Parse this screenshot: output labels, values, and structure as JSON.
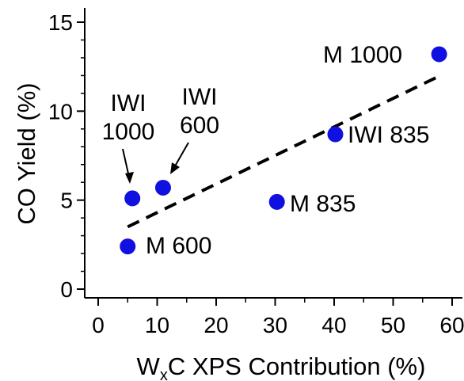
{
  "chart_data": {
    "type": "scatter",
    "title": "",
    "xlabel": "W",
    "xlabel_sub": "x",
    "xlabel_rest": "C XPS Contribution (%)",
    "ylabel": "CO Yield (%)",
    "xlim": [
      -1,
      61
    ],
    "ylim": [
      -0.5,
      15.5
    ],
    "x_ticks": [
      0,
      10,
      20,
      30,
      40,
      50,
      60
    ],
    "y_ticks": [
      0,
      5,
      10,
      15
    ],
    "grid": false,
    "marker_color": "#1010e0",
    "trend_line": {
      "style": "dashed",
      "color": "#000000",
      "x": [
        5,
        58
      ],
      "y": [
        3.5,
        12.0
      ]
    },
    "points": [
      {
        "label": "M 600",
        "x": 5.0,
        "y": 2.4
      },
      {
        "label": "IWI 1000",
        "x": 5.8,
        "y": 5.1
      },
      {
        "label": "IWI 600",
        "x": 11.0,
        "y": 5.7
      },
      {
        "label": "M 835",
        "x": 30.3,
        "y": 4.9
      },
      {
        "label": "IWI 835",
        "x": 40.2,
        "y": 8.7
      },
      {
        "label": "M 1000",
        "x": 57.8,
        "y": 13.2
      }
    ]
  }
}
